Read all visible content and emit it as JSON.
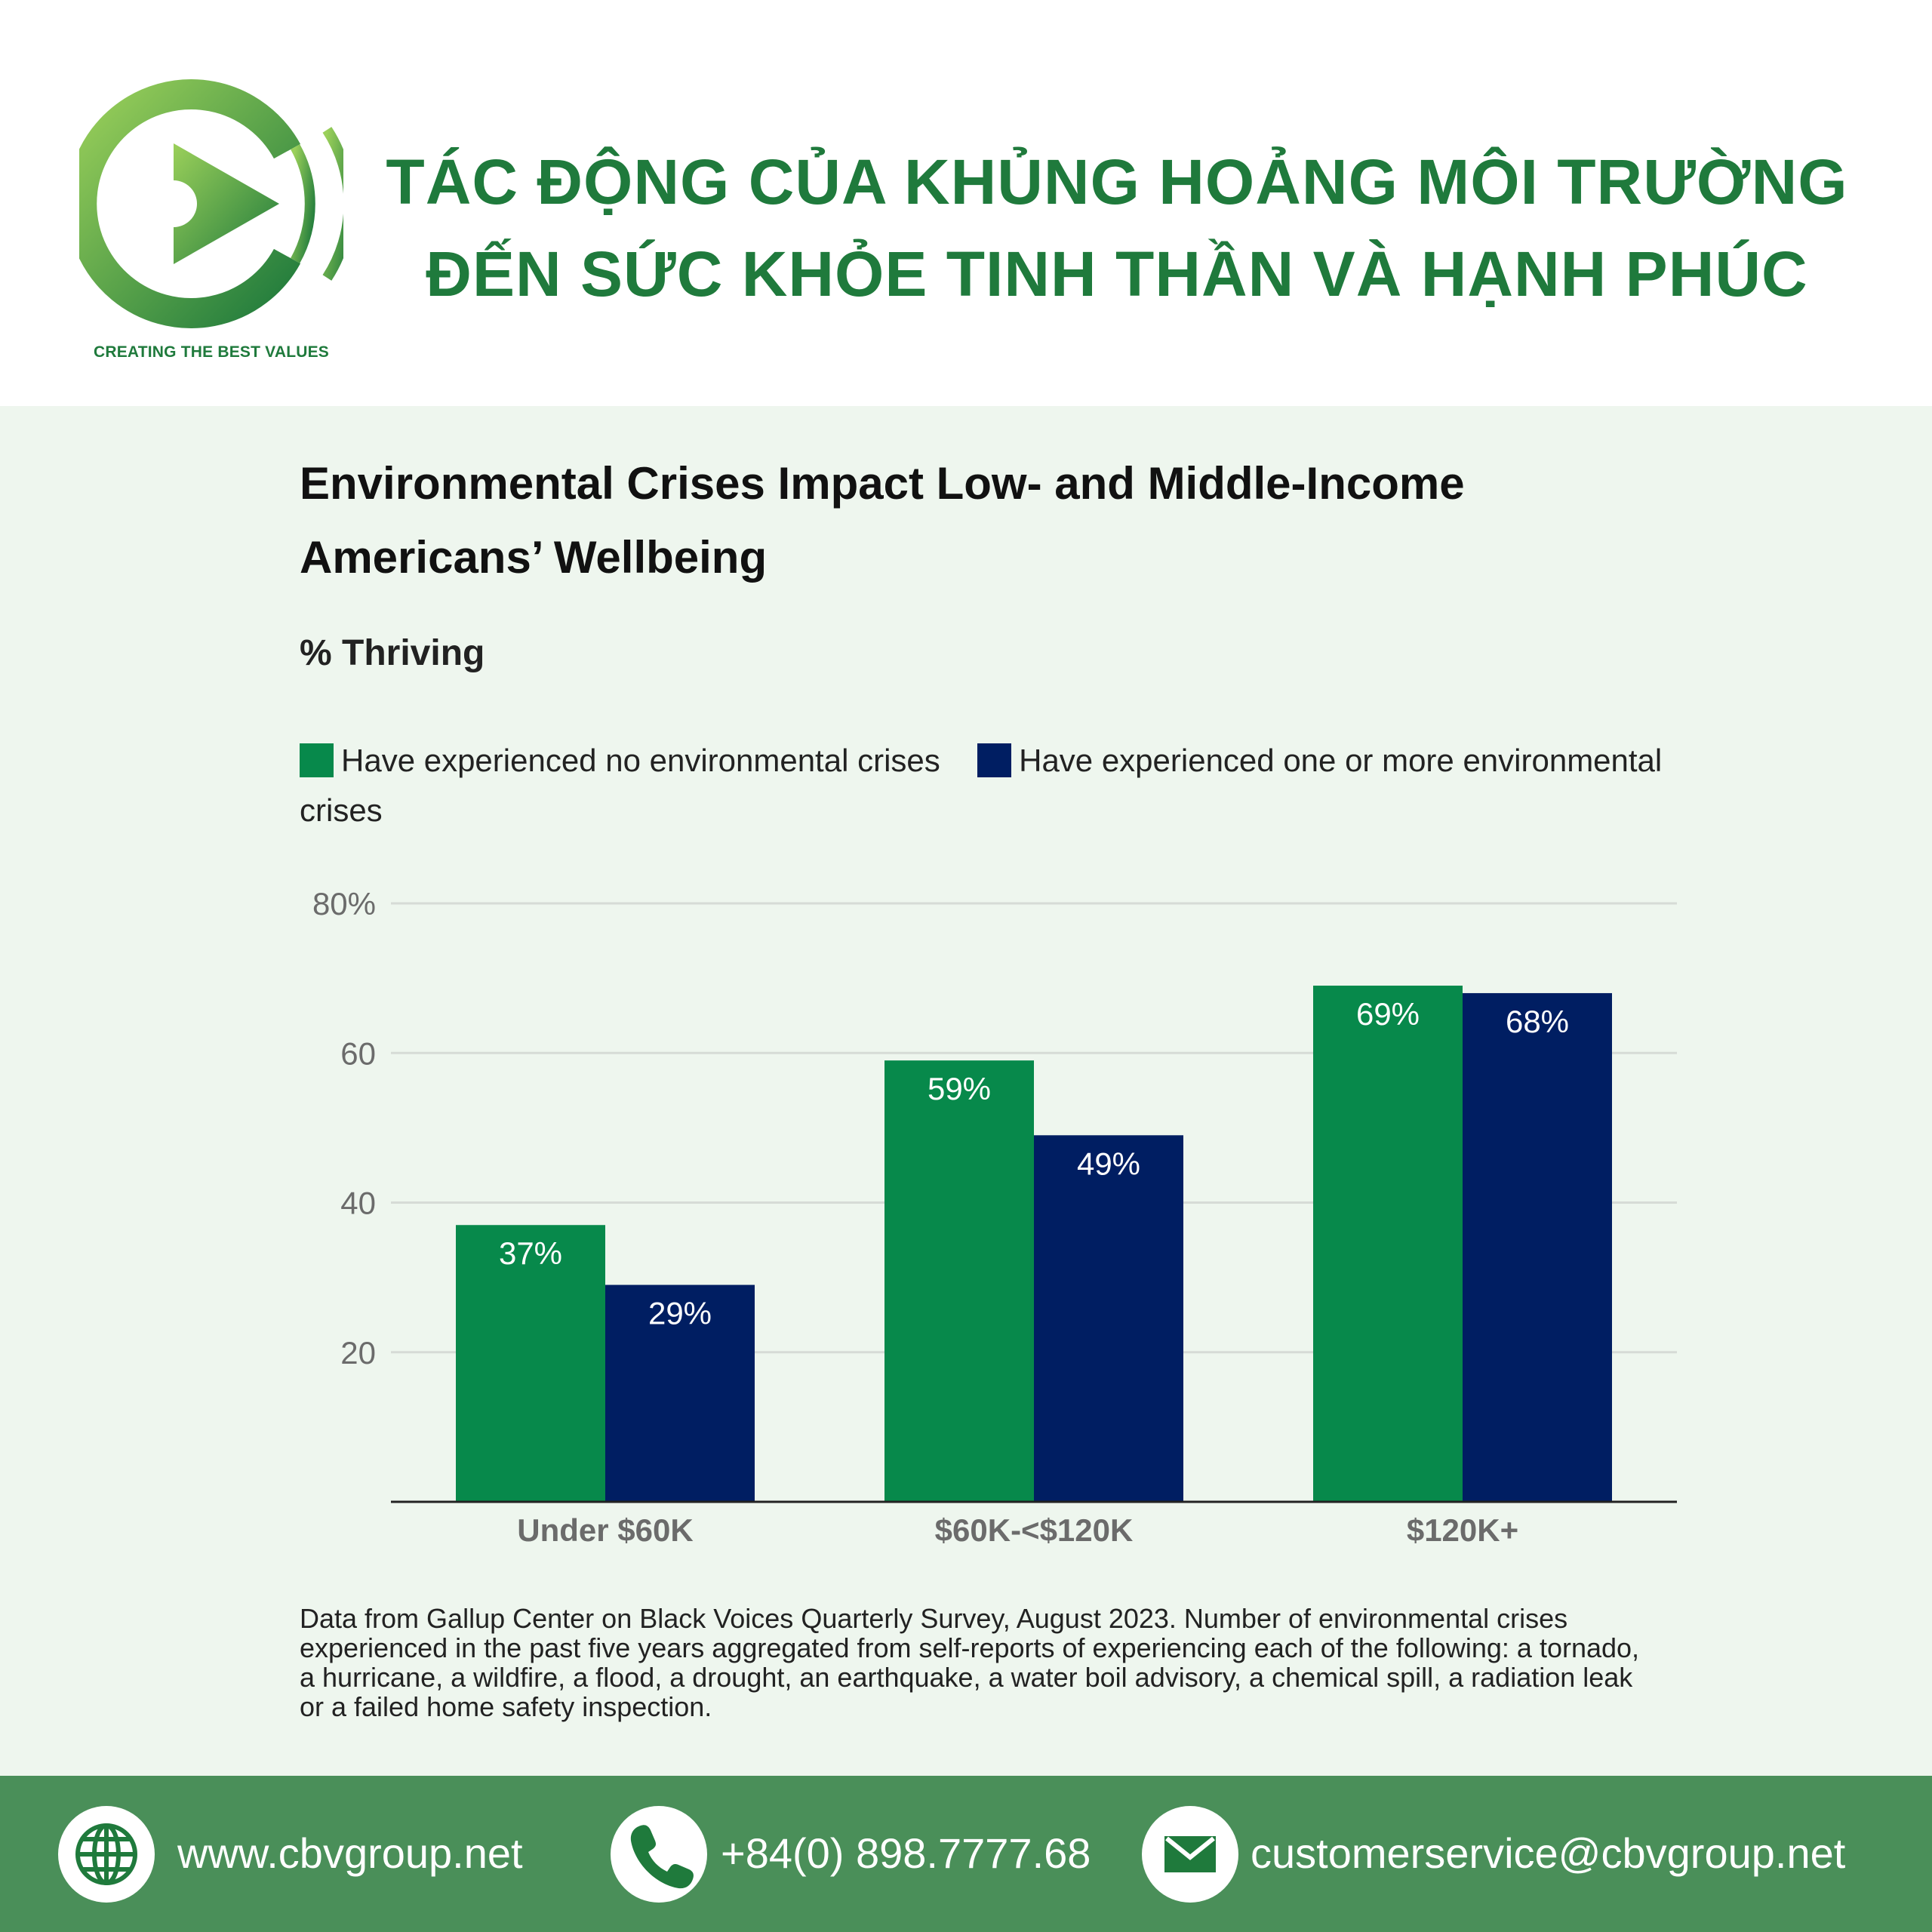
{
  "brand": {
    "tagline": "CREATING THE BEST VALUES",
    "color": "#1f7a3c"
  },
  "headline": {
    "line1": "TÁC ĐỘNG CỦA KHỦNG HOẢNG MÔI TRƯỜNG",
    "line2": "ĐẾN SỨC KHỎE TINH THẦN VÀ HẠNH PHÚC"
  },
  "chart_data": {
    "type": "bar",
    "title": "Environmental Crises Impact Low- and Middle-Income Americans’ Wellbeing",
    "subtitle": "% Thriving",
    "categories": [
      "Under $60K",
      "$60K-<$120K",
      "$120K+"
    ],
    "series": [
      {
        "name": "Have experienced no environmental crises",
        "color": "#07894b",
        "values": [
          37,
          59,
          69
        ],
        "labels": [
          "37%",
          "59%",
          "69%"
        ]
      },
      {
        "name": "Have experienced one or more environmental crises",
        "color": "#001e62",
        "values": [
          29,
          49,
          68
        ],
        "labels": [
          "29%",
          "49%",
          "68%"
        ]
      }
    ],
    "ylim": [
      0,
      80
    ],
    "yticks": [
      20,
      40,
      60,
      80
    ],
    "ytick_labels": [
      "20",
      "40",
      "60",
      "80%"
    ],
    "grid": true,
    "legend_position": "top-left"
  },
  "footnote": "Data from Gallup Center on Black Voices Quarterly Survey, August 2023. Number of environmental crises experienced in the past five years aggregated from self-reports of experiencing each of the following: a tornado, a hurricane, a wildfire, a flood, a drought, an earthquake, a water boil advisory, a chemical spill, a radiation leak or a failed home safety inspection.",
  "footer": {
    "website": {
      "icon": "globe-icon",
      "text": "www.cbvgroup.net"
    },
    "phone": {
      "icon": "phone-icon",
      "text": "+84(0) 898.7777.68"
    },
    "email": {
      "icon": "mail-icon",
      "text": "customerservice@cbvgroup.net"
    }
  }
}
